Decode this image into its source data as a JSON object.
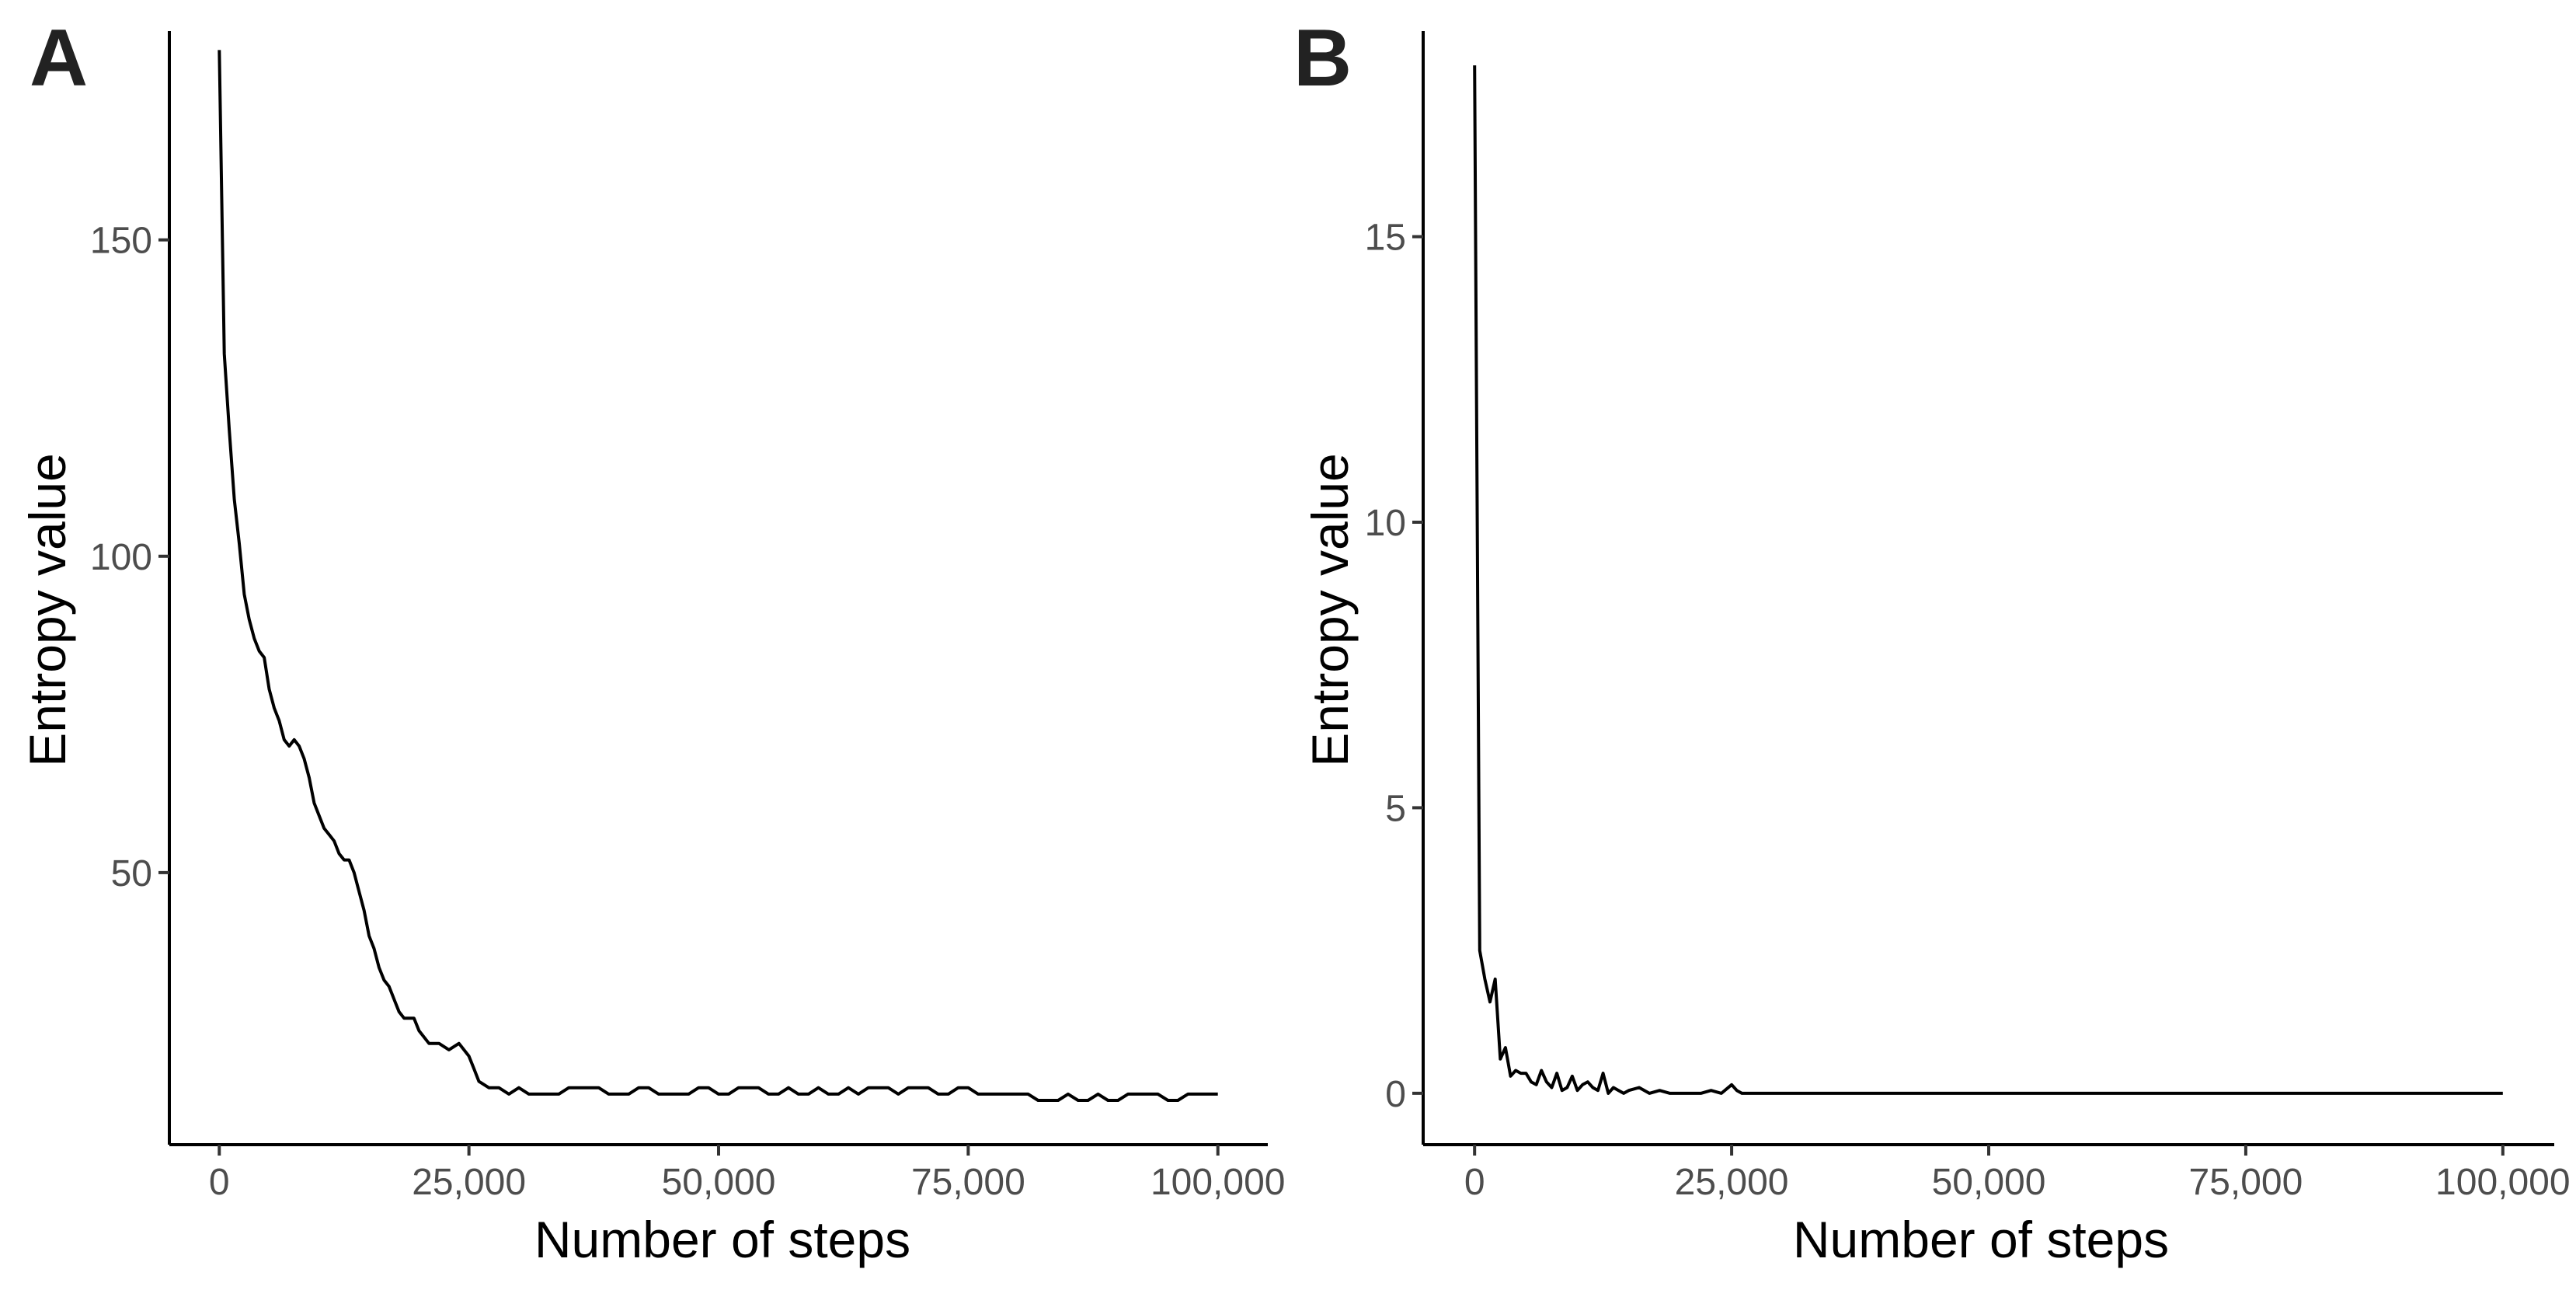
{
  "chart_data": [
    {
      "type": "line",
      "panel_label": "A",
      "xlabel": "Number of steps",
      "ylabel": "Entropy value",
      "xlim": [
        -5000,
        105000
      ],
      "ylim": [
        7,
        183
      ],
      "x_ticks": [
        0,
        25000,
        50000,
        75000,
        100000
      ],
      "x_tick_labels": [
        "0",
        "25,000",
        "50,000",
        "75,000",
        "100,000"
      ],
      "y_ticks": [
        50,
        100,
        150
      ],
      "y_tick_labels": [
        "50",
        "100",
        "150"
      ],
      "grid": false,
      "series": [
        {
          "x": [
            0,
            500,
            1000,
            1500,
            2000,
            2500,
            3000,
            3500,
            4000,
            4500,
            5000,
            5500,
            6000,
            6500,
            7000,
            7500,
            8000,
            8500,
            9000,
            9500,
            10000,
            10500,
            11000,
            11500,
            12000,
            12500,
            13000,
            13500,
            14000,
            14500,
            15000,
            15500,
            16000,
            16500,
            17000,
            17500,
            18000,
            18500,
            19000,
            19500,
            20000,
            21000,
            22000,
            23000,
            24000,
            25000,
            25500,
            26000,
            27000,
            28000,
            29000,
            30000,
            31000,
            32000,
            33000,
            34000,
            35000,
            36000,
            37000,
            38000,
            39000,
            40000,
            41000,
            42000,
            43000,
            44000,
            45000,
            46000,
            47000,
            48000,
            49000,
            50000,
            51000,
            52000,
            53000,
            54000,
            55000,
            56000,
            57000,
            58000,
            59000,
            60000,
            61000,
            62000,
            63000,
            64000,
            65000,
            66000,
            67000,
            68000,
            69000,
            70000,
            71000,
            72000,
            73000,
            74000,
            75000,
            76000,
            77000,
            78000,
            79000,
            80000,
            81000,
            82000,
            83000,
            84000,
            85000,
            86000,
            87000,
            88000,
            89000,
            90000,
            91000,
            92000,
            93000,
            94000,
            95000,
            96000,
            97000,
            98000,
            99000,
            100000
          ],
          "y": [
            180,
            132,
            120,
            109,
            102,
            94,
            90,
            87,
            85,
            84,
            79,
            76,
            74,
            71,
            70,
            71,
            70,
            68,
            65,
            61,
            59,
            57,
            56,
            55,
            53,
            52,
            52,
            50,
            47,
            44,
            40,
            38,
            35,
            33,
            32,
            30,
            28,
            27,
            27,
            27,
            25,
            23,
            23,
            22,
            23,
            21,
            19,
            17,
            16,
            16,
            15,
            16,
            15,
            15,
            15,
            15,
            16,
            16,
            16,
            16,
            15,
            15,
            15,
            16,
            16,
            15,
            15,
            15,
            15,
            16,
            16,
            15,
            15,
            16,
            16,
            16,
            15,
            15,
            16,
            15,
            15,
            16,
            15,
            15,
            16,
            15,
            16,
            16,
            16,
            15,
            16,
            16,
            16,
            15,
            15,
            16,
            16,
            15,
            15,
            15,
            15,
            15,
            15,
            14,
            14,
            14,
            15,
            14,
            14,
            15,
            14,
            14,
            15,
            15,
            15,
            15,
            14,
            14,
            15,
            15,
            15,
            15
          ]
        }
      ]
    },
    {
      "type": "line",
      "panel_label": "B",
      "xlabel": "Number of steps",
      "ylabel": "Entropy value",
      "xlim": [
        -5000,
        105000
      ],
      "ylim": [
        -0.9,
        18.6
      ],
      "x_ticks": [
        0,
        25000,
        50000,
        75000,
        100000
      ],
      "x_tick_labels": [
        "0",
        "25,000",
        "50,000",
        "75,000",
        "100,000"
      ],
      "y_ticks": [
        0,
        5,
        10,
        15
      ],
      "y_tick_labels": [
        "0",
        "5",
        "10",
        "15"
      ],
      "grid": false,
      "series": [
        {
          "x": [
            0,
            500,
            1000,
            1500,
            2000,
            2500,
            3000,
            3500,
            4000,
            4500,
            5000,
            5500,
            6000,
            6500,
            7000,
            7500,
            8000,
            8500,
            9000,
            9500,
            10000,
            10500,
            11000,
            11500,
            12000,
            12500,
            13000,
            13500,
            14000,
            14500,
            15000,
            16000,
            17000,
            18000,
            19000,
            20000,
            21000,
            22000,
            23000,
            24000,
            25000,
            25500,
            26000,
            27000,
            30000,
            40000,
            50000,
            60000,
            70000,
            80000,
            90000,
            100000
          ],
          "y": [
            18,
            2.5,
            2.0,
            1.6,
            2.0,
            0.6,
            0.8,
            0.3,
            0.4,
            0.35,
            0.35,
            0.2,
            0.15,
            0.4,
            0.2,
            0.1,
            0.35,
            0.05,
            0.1,
            0.3,
            0.05,
            0.15,
            0.2,
            0.1,
            0.05,
            0.35,
            0.0,
            0.1,
            0.05,
            0.0,
            0.05,
            0.1,
            0.0,
            0.05,
            0.0,
            0.0,
            0.0,
            0.0,
            0.05,
            0.0,
            0.15,
            0.05,
            0.0,
            0.0,
            0.0,
            0.0,
            0.0,
            0.0,
            0.0,
            0.0,
            0.0,
            0.0
          ]
        }
      ]
    }
  ]
}
